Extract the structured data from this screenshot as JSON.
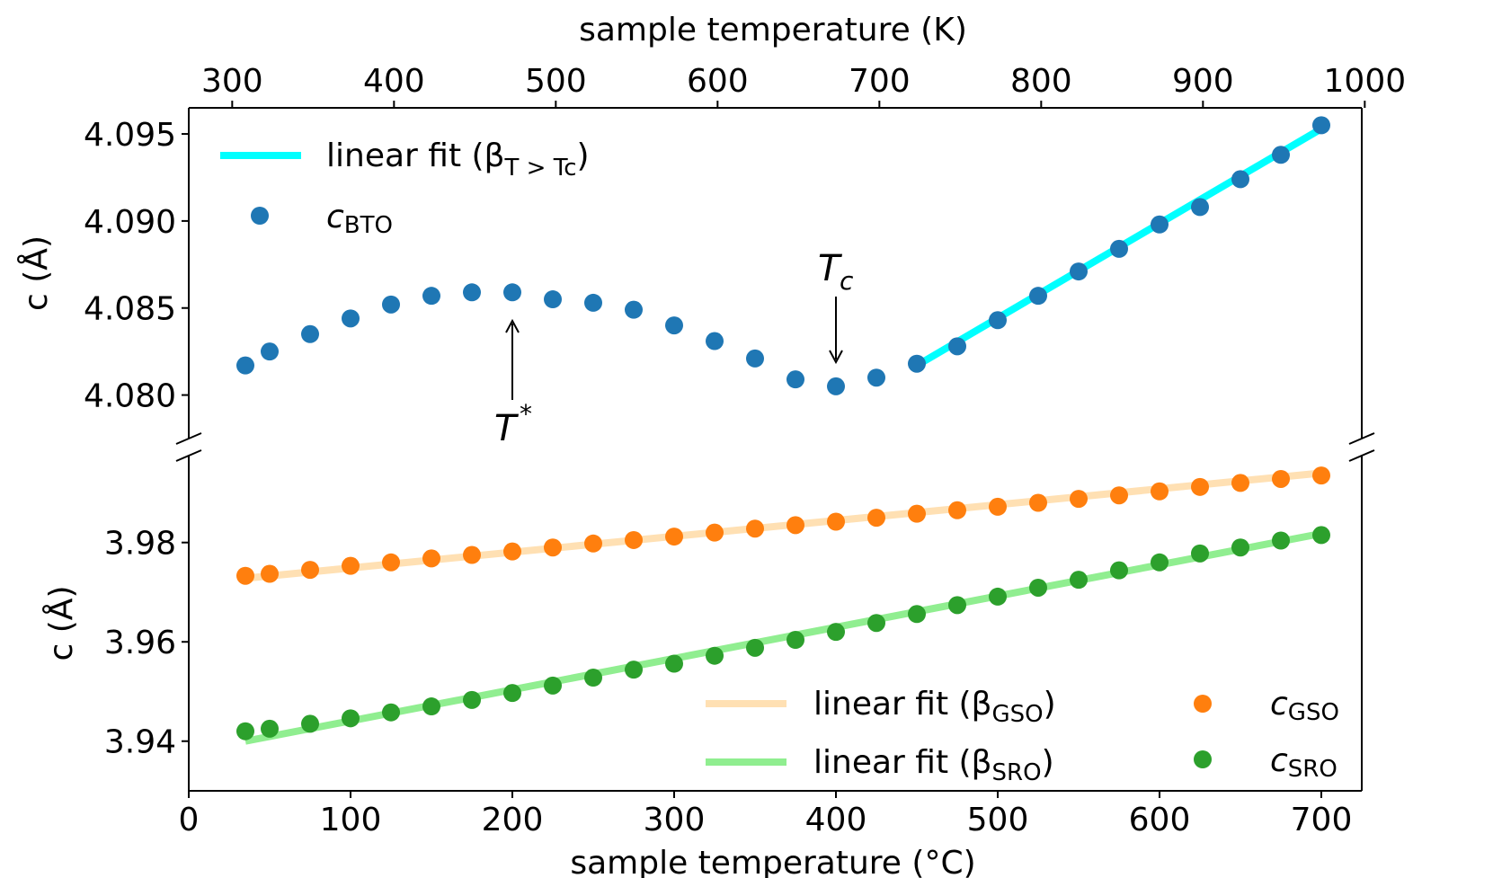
{
  "chart_data": {
    "type": "scatter",
    "title": "",
    "xlabel_bottom": "sample temperature (°C)",
    "xlabel_top": "sample temperature (K)",
    "ylabel": "c (Å)",
    "xlim": [
      0,
      725
    ],
    "xlim_top_K": [
      273.15,
      998.15
    ],
    "top_ticks": [
      "300",
      "400",
      "500",
      "600",
      "700",
      "800",
      "900",
      "1000"
    ],
    "top_tick_values_K": [
      300,
      400,
      500,
      600,
      700,
      800,
      900,
      1000
    ],
    "bottom_ticks": [
      "0",
      "100",
      "200",
      "300",
      "400",
      "500",
      "600",
      "700"
    ],
    "bottom_tick_values": [
      0,
      100,
      200,
      300,
      400,
      500,
      600,
      700
    ],
    "upper_panel": {
      "ylim": [
        4.0775,
        4.0965
      ],
      "ytick_values": [
        4.08,
        4.085,
        4.09,
        4.095
      ],
      "ytick_labels": [
        "4.080",
        "4.085",
        "4.090",
        "4.095"
      ],
      "x": [
        35,
        50,
        75,
        100,
        125,
        150,
        175,
        200,
        225,
        250,
        275,
        300,
        325,
        350,
        375,
        400,
        425,
        450,
        475,
        500,
        525,
        550,
        575,
        600,
        625,
        650,
        675,
        700
      ],
      "series": [
        {
          "name": "c_BTO",
          "color": "#1f77b4",
          "values": [
            4.0817,
            4.0825,
            4.0835,
            4.0844,
            4.0852,
            4.0857,
            4.0859,
            4.0859,
            4.0855,
            4.0853,
            4.0849,
            4.084,
            4.0831,
            4.0821,
            4.0809,
            4.0805,
            4.081,
            4.0818,
            4.0828,
            4.0843,
            4.0857,
            4.0871,
            4.0884,
            4.0898,
            4.0908,
            4.0924,
            4.0938,
            4.0955
          ]
        }
      ],
      "fit": {
        "name": "linear fit (β_{T>T_c})",
        "color": "#00ffff",
        "x": [
          450,
          700
        ],
        "y": [
          4.0817,
          4.0953
        ]
      },
      "annotations": [
        {
          "label": "T*",
          "x": 200,
          "y": 4.0855
        },
        {
          "label": "T_c",
          "x": 400,
          "y": 4.0822
        }
      ]
    },
    "lower_panel": {
      "ylim": [
        3.93,
        3.9975
      ],
      "ytick_values": [
        3.94,
        3.96,
        3.98
      ],
      "ytick_labels": [
        "3.94",
        "3.96",
        "3.98"
      ],
      "x": [
        35,
        50,
        75,
        100,
        125,
        150,
        175,
        200,
        225,
        250,
        275,
        300,
        325,
        350,
        375,
        400,
        425,
        450,
        475,
        500,
        525,
        550,
        575,
        600,
        625,
        650,
        675,
        700
      ],
      "series": [
        {
          "name": "c_GSO",
          "color": "#ff7f0e",
          "values": [
            3.9733,
            3.9737,
            3.9745,
            3.9753,
            3.976,
            3.9768,
            3.9775,
            3.9782,
            3.979,
            3.9798,
            3.9805,
            3.9812,
            3.982,
            3.9828,
            3.9835,
            3.9842,
            3.985,
            3.9858,
            3.9865,
            3.9872,
            3.988,
            3.9888,
            3.9895,
            3.9903,
            3.9912,
            3.992,
            3.9928,
            3.9935
          ]
        },
        {
          "name": "c_SRO",
          "color": "#2ca02c",
          "values": [
            3.942,
            3.9425,
            3.9435,
            3.9446,
            3.9458,
            3.947,
            3.9483,
            3.9497,
            3.9512,
            3.9528,
            3.9544,
            3.9556,
            3.9572,
            3.9588,
            3.9604,
            3.962,
            3.9638,
            3.9656,
            3.9674,
            3.9691,
            3.9709,
            3.9725,
            3.9744,
            3.976,
            3.9778,
            3.979,
            3.9804,
            3.9815
          ]
        }
      ],
      "fits": [
        {
          "name": "linear fit (β_GSO)",
          "color": "#ffe0b3",
          "x": [
            35,
            700
          ],
          "y": [
            3.9728,
            3.994
          ]
        },
        {
          "name": "linear fit (β_SRO)",
          "color": "#90ee90",
          "x": [
            35,
            700
          ],
          "y": [
            3.94,
            3.9818
          ]
        }
      ]
    },
    "legend_upper": {
      "fit_label": "linear fit (β",
      "fit_sub": "T > Tc",
      "fit_close": ")",
      "point_label": "c",
      "point_sub": "BTO"
    },
    "legend_lower": {
      "gso_fit_label": "linear fit (β",
      "gso_fit_sub": "GSO",
      "sro_fit_label": "linear fit (β",
      "sro_fit_sub": "SRO",
      "close": ")",
      "gso_point_label": "c",
      "gso_point_sub": "GSO",
      "sro_point_label": "c",
      "sro_point_sub": "SRO"
    },
    "annotation_labels": {
      "tstar": "T",
      "tstar_sup": "*",
      "tc": "T",
      "tc_sub": "c"
    }
  }
}
